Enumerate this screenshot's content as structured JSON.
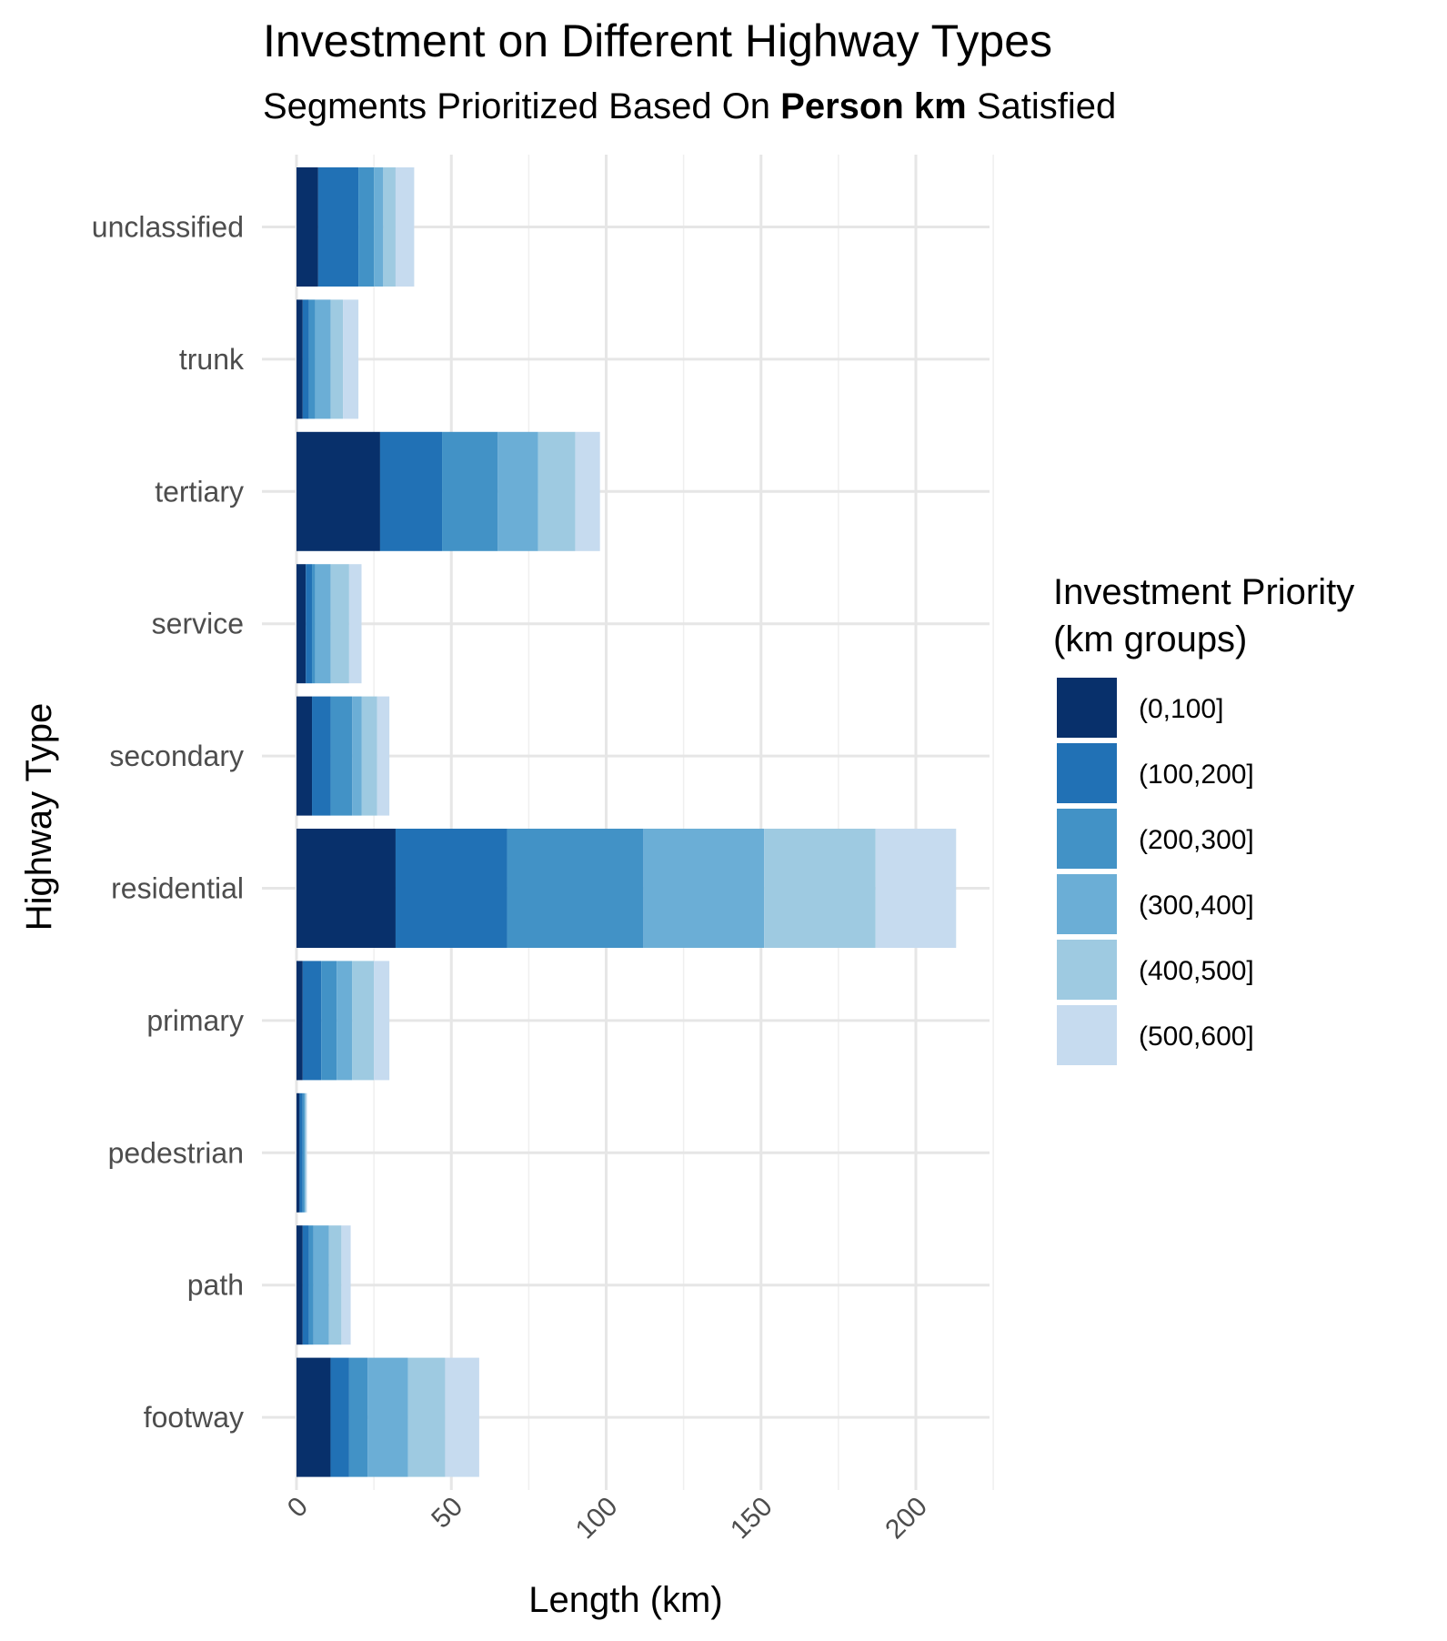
{
  "chart_data": {
    "type": "bar",
    "orientation": "horizontal",
    "stacked": true,
    "title": "Investment on Different Highway Types",
    "subtitle": {
      "prefix": "Segments Prioritized Based On ",
      "emphasis": "Person km",
      "suffix": " Satisfied"
    },
    "xlabel": "Length (km)",
    "ylabel": "Highway Type",
    "xlim": [
      0,
      225
    ],
    "x_ticks": [
      0,
      50,
      100,
      150,
      200
    ],
    "grid": true,
    "legend_position": "right",
    "legend_title": [
      "Investment Priority",
      "(km groups)"
    ],
    "categories": [
      "unclassified",
      "trunk",
      "tertiary",
      "service",
      "secondary",
      "residential",
      "primary",
      "pedestrian",
      "path",
      "footway"
    ],
    "series": [
      {
        "name": "(0,100]",
        "color": "#08306b",
        "values": [
          7,
          2,
          27,
          3,
          5,
          32,
          2,
          1,
          2,
          11
        ]
      },
      {
        "name": "(100,200]",
        "color": "#2171b5",
        "values": [
          13,
          2,
          20,
          2,
          6,
          36,
          6,
          1,
          2,
          6
        ]
      },
      {
        "name": "(200,300]",
        "color": "#4292c6",
        "values": [
          5,
          2,
          18,
          1,
          7,
          44,
          5,
          0.5,
          1.5,
          6
        ]
      },
      {
        "name": "(300,400]",
        "color": "#6baed6",
        "values": [
          3,
          5,
          13,
          5,
          3,
          39,
          5,
          0.3,
          5,
          13
        ]
      },
      {
        "name": "(400,500]",
        "color": "#9ecae1",
        "values": [
          4,
          4,
          12,
          6,
          5,
          36,
          7,
          0.3,
          4,
          12
        ]
      },
      {
        "name": "(500,600]",
        "color": "#c6dbef",
        "values": [
          6,
          5,
          8,
          4,
          4,
          26,
          5,
          0.3,
          3,
          11
        ]
      }
    ]
  }
}
